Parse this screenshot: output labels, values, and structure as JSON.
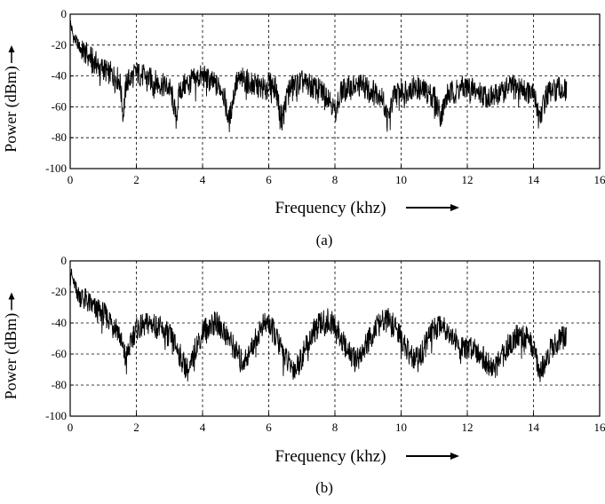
{
  "chart_data": [
    {
      "type": "line",
      "caption": "(a)",
      "xlabel": "Frequency (khz)",
      "ylabel": "Power (dBm)",
      "xlim": [
        0,
        16
      ],
      "ylim": [
        -100,
        0
      ],
      "xticks": [
        0,
        2,
        4,
        6,
        8,
        10,
        12,
        14,
        16
      ],
      "yticks": [
        0,
        -20,
        -40,
        -60,
        -80,
        -100
      ],
      "grid": true,
      "series": [
        {
          "x": [
            0,
            0.1,
            0.2,
            0.3,
            0.4,
            0.5,
            0.6,
            0.7,
            0.8,
            0.9,
            1.0,
            1.1,
            1.2,
            1.3,
            1.4,
            1.5,
            1.6,
            1.7,
            1.8,
            1.9,
            2.0,
            2.2,
            2.4,
            2.6,
            2.8,
            3.0,
            3.1,
            3.2,
            3.3,
            3.4,
            3.6,
            3.8,
            4.0,
            4.2,
            4.4,
            4.6,
            4.8,
            5.0,
            5.2,
            5.4,
            5.6,
            5.8,
            6.0,
            6.2,
            6.4,
            6.6,
            6.8,
            7.0,
            7.2,
            7.4,
            7.6,
            7.8,
            8.0,
            8.2,
            8.4,
            8.6,
            8.8,
            9.0,
            9.2,
            9.4,
            9.6,
            9.8,
            10.0,
            10.2,
            10.4,
            10.6,
            10.8,
            11.0,
            11.2,
            11.4,
            11.6,
            11.8,
            12.0,
            12.2,
            12.4,
            12.6,
            12.8,
            13.0,
            13.2,
            13.4,
            13.6,
            13.8,
            14.0,
            14.2,
            14.4,
            14.6,
            14.8,
            15.0
          ],
          "y": [
            -5,
            -15,
            -18,
            -22,
            -24,
            -26,
            -28,
            -30,
            -32,
            -34,
            -35,
            -37,
            -38,
            -40,
            -41,
            -43,
            -65,
            -44,
            -42,
            -40,
            -38,
            -40,
            -42,
            -44,
            -46,
            -48,
            -55,
            -68,
            -50,
            -47,
            -44,
            -42,
            -40,
            -43,
            -46,
            -48,
            -70,
            -45,
            -42,
            -44,
            -46,
            -48,
            -45,
            -47,
            -68,
            -48,
            -46,
            -44,
            -46,
            -48,
            -50,
            -52,
            -63,
            -50,
            -48,
            -47,
            -46,
            -48,
            -50,
            -52,
            -68,
            -52,
            -50,
            -48,
            -47,
            -49,
            -51,
            -53,
            -66,
            -52,
            -50,
            -48,
            -47,
            -49,
            -51,
            -53,
            -54,
            -50,
            -48,
            -47,
            -48,
            -50,
            -52,
            -66,
            -52,
            -50,
            -48,
            -50
          ]
        }
      ]
    },
    {
      "type": "line",
      "caption": "(b)",
      "xlabel": "Frequency (khz)",
      "ylabel": "Power (dBm)",
      "xlim": [
        0,
        16
      ],
      "ylim": [
        -100,
        0
      ],
      "xticks": [
        0,
        2,
        4,
        6,
        8,
        10,
        12,
        14,
        16
      ],
      "yticks": [
        0,
        -20,
        -40,
        -60,
        -80,
        -100
      ],
      "grid": true,
      "series": [
        {
          "x": [
            0,
            0.1,
            0.2,
            0.3,
            0.4,
            0.5,
            0.6,
            0.7,
            0.8,
            0.9,
            1.0,
            1.1,
            1.2,
            1.3,
            1.4,
            1.5,
            1.6,
            1.7,
            1.8,
            1.9,
            2.0,
            2.2,
            2.4,
            2.6,
            2.8,
            3.0,
            3.2,
            3.4,
            3.6,
            3.8,
            4.0,
            4.2,
            4.4,
            4.6,
            4.8,
            5.0,
            5.2,
            5.4,
            5.6,
            5.8,
            6.0,
            6.2,
            6.4,
            6.6,
            6.8,
            7.0,
            7.2,
            7.4,
            7.6,
            7.8,
            8.0,
            8.2,
            8.4,
            8.6,
            8.8,
            9.0,
            9.2,
            9.4,
            9.6,
            9.8,
            10.0,
            10.2,
            10.4,
            10.6,
            10.8,
            11.0,
            11.2,
            11.4,
            11.6,
            11.8,
            12.0,
            12.2,
            12.4,
            12.6,
            12.8,
            13.0,
            13.2,
            13.4,
            13.6,
            13.8,
            14.0,
            14.2,
            14.4,
            14.6,
            14.8,
            15.0
          ],
          "y": [
            -5,
            -14,
            -18,
            -22,
            -24,
            -26,
            -28,
            -30,
            -32,
            -33,
            -34,
            -36,
            -38,
            -40,
            -42,
            -48,
            -58,
            -62,
            -55,
            -48,
            -44,
            -42,
            -40,
            -42,
            -45,
            -48,
            -55,
            -65,
            -72,
            -55,
            -45,
            -42,
            -40,
            -44,
            -50,
            -58,
            -65,
            -60,
            -50,
            -42,
            -40,
            -48,
            -58,
            -66,
            -70,
            -62,
            -52,
            -44,
            -40,
            -38,
            -42,
            -50,
            -58,
            -64,
            -60,
            -52,
            -44,
            -40,
            -38,
            -42,
            -50,
            -58,
            -64,
            -60,
            -50,
            -44,
            -40,
            -44,
            -50,
            -56,
            -58,
            -54,
            -60,
            -66,
            -70,
            -64,
            -56,
            -50,
            -48,
            -50,
            -56,
            -72,
            -62,
            -54,
            -50,
            -50
          ]
        }
      ]
    }
  ]
}
